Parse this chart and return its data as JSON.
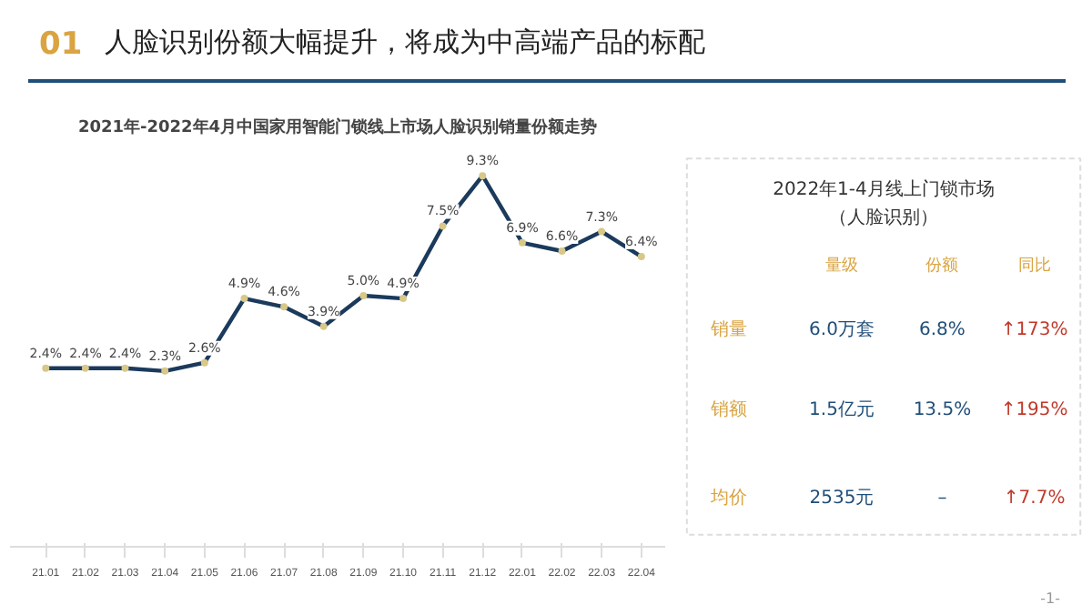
{
  "chart_data": [
    {
      "type": "other",
      "title": "人脸识别份额大幅提升，将成为中高端产品的标配",
      "annotations": [
        "01",
        "-1-"
      ]
    },
    {
      "type": "line",
      "title": "2021年-2022年4月中国家用智能门锁线上市场人脸识别销量份额走势",
      "categories": [
        "21.01",
        "21.02",
        "21.03",
        "21.04",
        "21.05",
        "21.06",
        "21.07",
        "21.08",
        "21.09",
        "21.10",
        "21.11",
        "21.12",
        "22.01",
        "22.02",
        "22.03",
        "22.04"
      ],
      "series": [
        {
          "color": "#1b3a5c",
          "values": [
            2.4,
            2.4,
            2.4,
            2.3,
            2.6,
            4.9,
            4.6,
            3.9,
            5.0,
            4.9,
            7.5,
            9.3,
            6.9,
            6.6,
            7.3,
            6.4
          ],
          "value_labels": [
            "2.4%",
            "2.4%",
            "2.4%",
            "2.3%",
            "2.6%",
            "4.9%",
            "4.6%",
            "3.9%",
            "5.0%",
            "4.9%",
            "7.5%",
            "9.3%",
            "6.9%",
            "6.6%",
            "7.3%",
            "6.4%"
          ]
        }
      ],
      "marker": "circle",
      "line_style": "solid",
      "grid": false,
      "tick_labels": "x"
    },
    {
      "type": "other",
      "title": "2022年1-4月线上门锁市场",
      "subtitle": "（人脸识别）",
      "annotations": [
        "量级",
        "份额",
        "同比",
        "销量",
        "6.0万套",
        "6.8%",
        "↑173%",
        "销额",
        "1.5亿元",
        "13.5%",
        "↑195%",
        "均价",
        "2535元",
        "–",
        "↑7.7%"
      ]
    }
  ]
}
